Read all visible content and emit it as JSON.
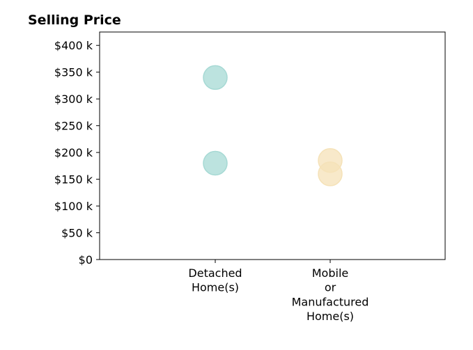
{
  "chart_data": {
    "type": "scatter",
    "title": "Selling Price",
    "xlabel": "",
    "ylabel": "",
    "categories": [
      [
        "Detached",
        "Home(s)"
      ],
      [
        "Mobile",
        "or",
        "Manufactured",
        "Home(s)"
      ]
    ],
    "ylim": [
      0,
      425000
    ],
    "yticks": [
      0,
      50000,
      100000,
      150000,
      200000,
      250000,
      300000,
      350000,
      400000
    ],
    "ytick_labels": [
      "$0",
      "$50 k",
      "$100 k",
      "$150 k",
      "$200 k",
      "$250 k",
      "$300 k",
      "$350 k",
      "$400 k"
    ],
    "grid": false,
    "legend": "none",
    "series": [
      {
        "category_index": 0,
        "color": "#a6d9d4",
        "values": [
          340000,
          180000
        ]
      },
      {
        "category_index": 1,
        "color": "#f5e2b8",
        "values": [
          185000,
          160000
        ]
      }
    ]
  }
}
